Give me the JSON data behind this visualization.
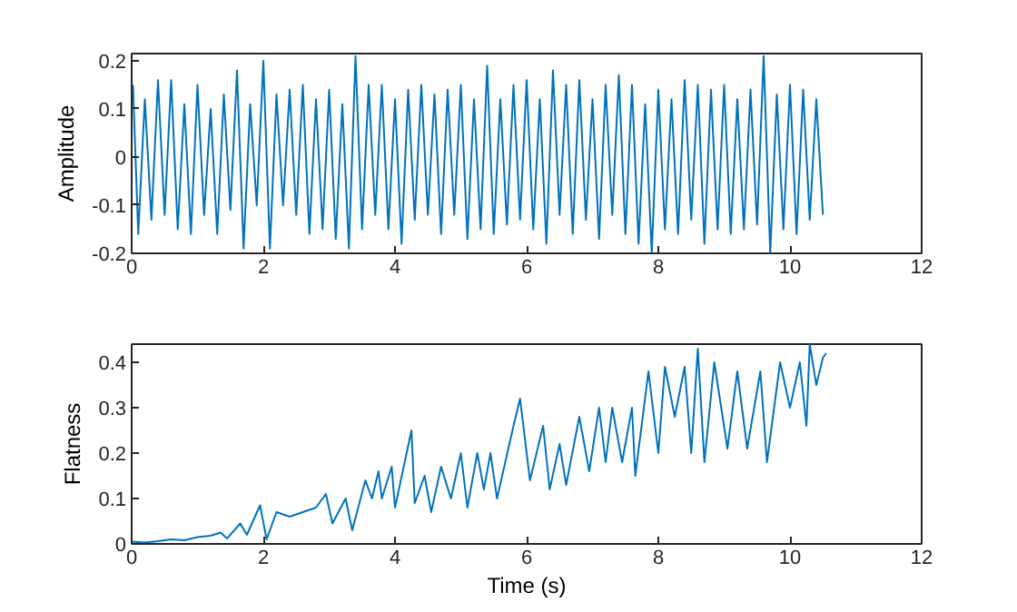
{
  "chart_data": [
    {
      "type": "line",
      "ylabel": "Amplitude",
      "xlim": [
        0,
        12
      ],
      "xticks": [
        0,
        2,
        4,
        6,
        8,
        10,
        12
      ],
      "ylim": [
        -0.2,
        0.215
      ],
      "yticks": [
        -0.2,
        -0.1,
        0,
        0.1,
        0.2
      ],
      "x": [
        0.02,
        0.1,
        0.2,
        0.3,
        0.4,
        0.5,
        0.6,
        0.7,
        0.8,
        0.9,
        1.0,
        1.1,
        1.2,
        1.3,
        1.4,
        1.5,
        1.6,
        1.7,
        1.8,
        1.9,
        2.0,
        2.1,
        2.2,
        2.3,
        2.4,
        2.5,
        2.6,
        2.7,
        2.8,
        2.9,
        3.0,
        3.1,
        3.2,
        3.3,
        3.4,
        3.5,
        3.6,
        3.7,
        3.8,
        3.9,
        4.0,
        4.1,
        4.2,
        4.3,
        4.4,
        4.5,
        4.6,
        4.7,
        4.8,
        4.9,
        5.0,
        5.1,
        5.2,
        5.3,
        5.4,
        5.5,
        5.6,
        5.7,
        5.8,
        5.9,
        6.0,
        6.1,
        6.2,
        6.3,
        6.4,
        6.5,
        6.6,
        6.7,
        6.8,
        6.9,
        7.0,
        7.1,
        7.2,
        7.3,
        7.4,
        7.5,
        7.6,
        7.7,
        7.8,
        7.9,
        8.0,
        8.1,
        8.2,
        8.3,
        8.4,
        8.5,
        8.6,
        8.7,
        8.8,
        8.9,
        9.0,
        9.1,
        9.2,
        9.3,
        9.4,
        9.5,
        9.6,
        9.7,
        9.8,
        9.9,
        10.0,
        10.1,
        10.2,
        10.3,
        10.4,
        10.5
      ],
      "series": [
        {
          "color": "#0072bd",
          "values": [
            0.15,
            -0.16,
            0.12,
            -0.13,
            0.16,
            -0.12,
            0.16,
            -0.15,
            0.11,
            -0.16,
            0.15,
            -0.12,
            0.1,
            -0.16,
            0.13,
            -0.11,
            0.18,
            -0.19,
            0.11,
            -0.1,
            0.2,
            -0.19,
            0.13,
            -0.1,
            0.14,
            -0.12,
            0.15,
            -0.16,
            0.12,
            -0.15,
            0.14,
            -0.17,
            0.11,
            -0.19,
            0.21,
            -0.15,
            0.15,
            -0.12,
            0.15,
            -0.15,
            0.12,
            -0.18,
            0.14,
            -0.13,
            0.15,
            -0.12,
            0.13,
            -0.16,
            0.14,
            -0.12,
            0.15,
            -0.17,
            0.12,
            -0.15,
            0.19,
            -0.16,
            0.12,
            -0.14,
            0.15,
            -0.13,
            0.16,
            -0.15,
            0.12,
            -0.18,
            0.18,
            -0.12,
            0.15,
            -0.16,
            0.16,
            -0.13,
            0.12,
            -0.17,
            0.15,
            -0.12,
            0.17,
            -0.16,
            0.15,
            -0.18,
            0.11,
            -0.2,
            0.14,
            -0.15,
            0.12,
            -0.16,
            0.16,
            -0.13,
            0.15,
            -0.18,
            0.14,
            -0.15,
            0.15,
            -0.16,
            0.12,
            -0.15,
            0.14,
            -0.14,
            0.21,
            -0.2,
            0.13,
            -0.15,
            0.15,
            -0.16,
            0.14,
            -0.13,
            0.12,
            -0.12
          ]
        }
      ]
    },
    {
      "type": "line",
      "xlabel": "Time (s)",
      "ylabel": "Flatness",
      "xlim": [
        0,
        12
      ],
      "xticks": [
        0,
        2,
        4,
        6,
        8,
        10,
        12
      ],
      "ylim": [
        0,
        0.44
      ],
      "yticks": [
        0,
        0.1,
        0.2,
        0.3,
        0.4
      ],
      "x": [
        0,
        0.2,
        0.4,
        0.6,
        0.8,
        1.0,
        1.2,
        1.35,
        1.45,
        1.65,
        1.75,
        1.95,
        2.05,
        2.2,
        2.4,
        2.6,
        2.8,
        2.95,
        3.05,
        3.25,
        3.35,
        3.55,
        3.65,
        3.75,
        3.8,
        3.95,
        4.0,
        4.25,
        4.3,
        4.45,
        4.55,
        4.7,
        4.85,
        5.0,
        5.1,
        5.25,
        5.35,
        5.45,
        5.55,
        5.8,
        5.9,
        6.05,
        6.25,
        6.35,
        6.5,
        6.6,
        6.8,
        6.95,
        7.1,
        7.2,
        7.3,
        7.45,
        7.6,
        7.65,
        7.85,
        8.0,
        8.1,
        8.25,
        8.4,
        8.5,
        8.6,
        8.7,
        8.85,
        9.05,
        9.2,
        9.35,
        9.55,
        9.65,
        9.85,
        10.0,
        10.15,
        10.25,
        10.3,
        10.4,
        10.5,
        10.55
      ],
      "series": [
        {
          "color": "#0072bd",
          "values": [
            0.005,
            0.003,
            0.006,
            0.01,
            0.008,
            0.015,
            0.018,
            0.025,
            0.012,
            0.045,
            0.02,
            0.085,
            0.01,
            0.07,
            0.06,
            0.07,
            0.08,
            0.11,
            0.045,
            0.1,
            0.03,
            0.14,
            0.1,
            0.16,
            0.1,
            0.17,
            0.08,
            0.25,
            0.09,
            0.15,
            0.07,
            0.17,
            0.1,
            0.2,
            0.08,
            0.2,
            0.12,
            0.2,
            0.1,
            0.26,
            0.32,
            0.14,
            0.26,
            0.12,
            0.22,
            0.13,
            0.28,
            0.16,
            0.3,
            0.18,
            0.3,
            0.18,
            0.3,
            0.15,
            0.38,
            0.2,
            0.39,
            0.28,
            0.39,
            0.2,
            0.43,
            0.18,
            0.4,
            0.21,
            0.38,
            0.21,
            0.38,
            0.18,
            0.4,
            0.3,
            0.4,
            0.26,
            0.44,
            0.35,
            0.41,
            0.42
          ]
        }
      ]
    }
  ]
}
